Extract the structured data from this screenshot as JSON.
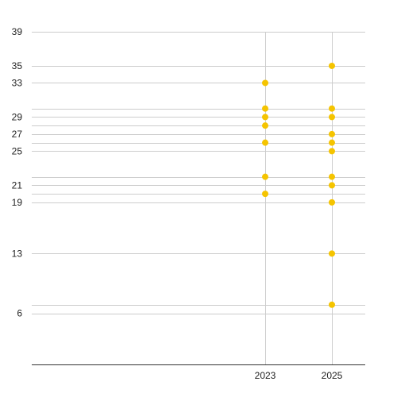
{
  "chart_data": {
    "type": "scatter",
    "title": "",
    "xlabel": "",
    "ylabel": "",
    "xlim": [
      2016,
      2026
    ],
    "ylim": [
      0,
      39
    ],
    "x_ticks": [
      2023,
      2025
    ],
    "y_ticks": [
      6,
      13,
      19,
      21,
      25,
      27,
      29,
      33,
      35,
      39
    ],
    "y_gridlines": [
      6,
      7,
      13,
      19,
      20,
      21,
      22,
      25,
      26,
      27,
      28,
      29,
      30,
      33,
      35,
      39
    ],
    "grid": true,
    "legend": "none",
    "series": [
      {
        "color": "#f5c400",
        "points": [
          {
            "x": 2023,
            "y": 33
          },
          {
            "x": 2023,
            "y": 30
          },
          {
            "x": 2023,
            "y": 29
          },
          {
            "x": 2023,
            "y": 28
          },
          {
            "x": 2023,
            "y": 26
          },
          {
            "x": 2023,
            "y": 22
          },
          {
            "x": 2023,
            "y": 20
          },
          {
            "x": 2025,
            "y": 35
          },
          {
            "x": 2025,
            "y": 30
          },
          {
            "x": 2025,
            "y": 29
          },
          {
            "x": 2025,
            "y": 27
          },
          {
            "x": 2025,
            "y": 26
          },
          {
            "x": 2025,
            "y": 25
          },
          {
            "x": 2025,
            "y": 22
          },
          {
            "x": 2025,
            "y": 21
          },
          {
            "x": 2025,
            "y": 19
          },
          {
            "x": 2025,
            "y": 13
          },
          {
            "x": 2025,
            "y": 7
          }
        ]
      }
    ]
  }
}
